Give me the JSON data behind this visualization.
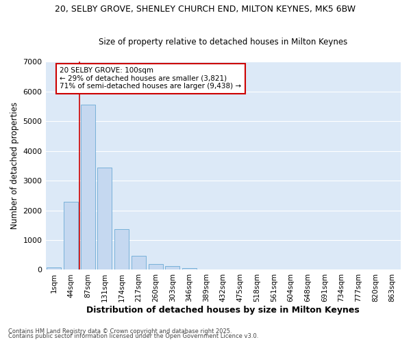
{
  "title1": "20, SELBY GROVE, SHENLEY CHURCH END, MILTON KEYNES, MK5 6BW",
  "title2": "Size of property relative to detached houses in Milton Keynes",
  "xlabel": "Distribution of detached houses by size in Milton Keynes",
  "ylabel": "Number of detached properties",
  "categories": [
    "1sqm",
    "44sqm",
    "87sqm",
    "131sqm",
    "174sqm",
    "217sqm",
    "260sqm",
    "303sqm",
    "346sqm",
    "389sqm",
    "432sqm",
    "475sqm",
    "518sqm",
    "561sqm",
    "604sqm",
    "648sqm",
    "691sqm",
    "734sqm",
    "777sqm",
    "820sqm",
    "863sqm"
  ],
  "values": [
    90,
    2300,
    5560,
    3450,
    1380,
    480,
    200,
    130,
    50,
    15,
    5,
    0,
    0,
    0,
    0,
    0,
    0,
    0,
    0,
    0,
    0
  ],
  "bar_color": "#c5d8f0",
  "bar_edge_color": "#6aaad4",
  "red_line_x": 1.5,
  "annotation_line1": "20 SELBY GROVE: 100sqm",
  "annotation_line2": "← 29% of detached houses are smaller (3,821)",
  "annotation_line3": "71% of semi-detached houses are larger (9,438) →",
  "annotation_box_color": "#ffffff",
  "annotation_box_edge": "#cc0000",
  "ylim": [
    0,
    7000
  ],
  "yticks": [
    0,
    1000,
    2000,
    3000,
    4000,
    5000,
    6000,
    7000
  ],
  "background_color": "#dce9f7",
  "grid_color": "#ffffff",
  "fig_bg": "#ffffff",
  "footer1": "Contains HM Land Registry data © Crown copyright and database right 2025.",
  "footer2": "Contains public sector information licensed under the Open Government Licence v3.0."
}
